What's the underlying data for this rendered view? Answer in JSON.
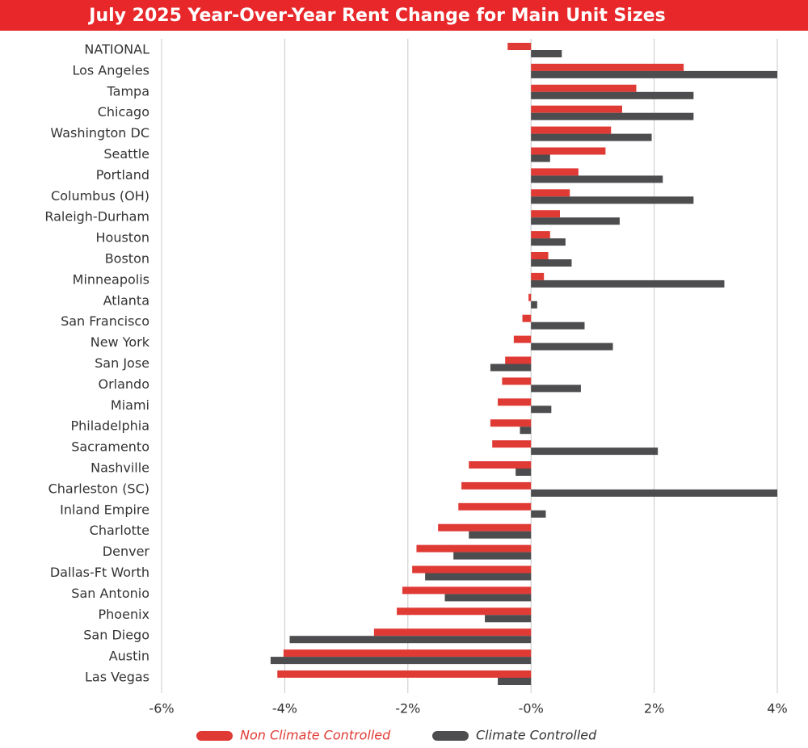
{
  "chart_data": {
    "type": "hbar",
    "title": "July 2025 Year-Over-Year Rent Change for Main Unit Sizes",
    "categories": [
      "NATIONAL",
      "Los Angeles",
      "Tampa",
      "Chicago",
      "Washington DC",
      "Seattle",
      "Portland",
      "Columbus (OH)",
      "Raleigh-Durham",
      "Houston",
      "Boston",
      "Minneapolis",
      "Atlanta",
      "San Francisco",
      "New York",
      "San Jose",
      "Orlando",
      "Miami",
      "Philadelphia",
      "Sacramento",
      "Nashville",
      "Charleston (SC)",
      "Inland Empire",
      "Charlotte",
      "Denver",
      "Dallas-Ft Worth",
      "San Antonio",
      "Phoenix",
      "San Diego",
      "Austin",
      "Las Vegas"
    ],
    "series": [
      {
        "name": "Non Climate Controlled",
        "color": "#e03a35",
        "values": [
          -0.38,
          2.48,
          1.71,
          1.48,
          1.3,
          1.21,
          0.77,
          0.63,
          0.47,
          0.31,
          0.28,
          0.21,
          -0.04,
          -0.14,
          -0.28,
          -0.42,
          -0.47,
          -0.54,
          -0.66,
          -0.63,
          -1.01,
          -1.13,
          -1.18,
          -1.51,
          -1.86,
          -1.93,
          -2.09,
          -2.18,
          -2.55,
          -4.02,
          -4.12
        ]
      },
      {
        "name": "Climate Controlled",
        "color": "#4d4d4f",
        "values": [
          0.5,
          4.0,
          2.64,
          2.64,
          1.96,
          0.31,
          2.14,
          2.64,
          1.44,
          0.56,
          0.66,
          3.14,
          0.1,
          0.87,
          1.33,
          -0.66,
          0.81,
          0.33,
          -0.18,
          2.06,
          -0.25,
          4.0,
          0.24,
          -1.01,
          -1.26,
          -1.72,
          -1.4,
          -0.75,
          -3.92,
          -4.23,
          -0.54
        ]
      }
    ],
    "xlim": [
      -6,
      4
    ],
    "xticks": [
      {
        "value": -6,
        "label": "-6%"
      },
      {
        "value": -4,
        "label": "-4%"
      },
      {
        "value": -2,
        "label": "-2%"
      },
      {
        "value": 0,
        "label": "-0%"
      },
      {
        "value": 2,
        "label": "2%"
      },
      {
        "value": 4,
        "label": "4%"
      }
    ],
    "grid": true,
    "legend": "bottom"
  }
}
